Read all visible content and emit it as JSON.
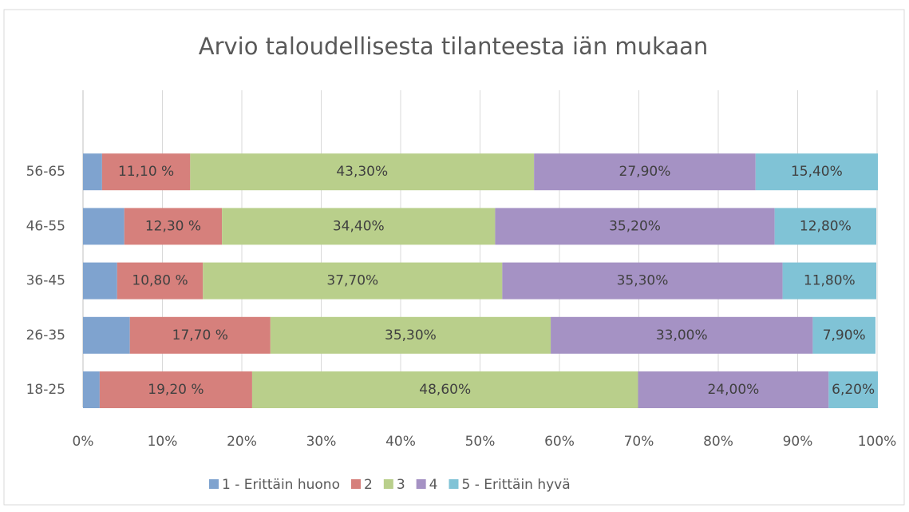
{
  "chart_data": {
    "type": "stacked-barh",
    "title": "Arvio taloudellisesta tilanteesta iän mukaan",
    "categories": [
      "18-25",
      "26-35",
      "36-45",
      "46-55",
      "56-65"
    ],
    "series": [
      {
        "name": "1 - Erittäin huono",
        "color": "#7fa3cf",
        "values": [
          2.1,
          5.9,
          4.3,
          5.2,
          2.4
        ]
      },
      {
        "name": "2",
        "color": "#d6807c",
        "values": [
          19.2,
          17.7,
          10.8,
          12.3,
          11.1
        ],
        "value_labels": [
          "19,20 %",
          "17,70 %",
          "10,80 %",
          "12,30 %",
          "11,10 %"
        ]
      },
      {
        "name": "3",
        "color": "#b9cf8b",
        "values": [
          48.6,
          35.3,
          37.7,
          34.4,
          43.3
        ],
        "value_labels": [
          "48,60%",
          "35,30%",
          "37,70%",
          "34,40%",
          "43,30%"
        ]
      },
      {
        "name": "4",
        "color": "#a592c4",
        "values": [
          24.0,
          33.0,
          35.3,
          35.2,
          27.9
        ],
        "value_labels": [
          "24,00%",
          "33,00%",
          "35,30%",
          "35,20%",
          "27,90%"
        ]
      },
      {
        "name": "5 - Erittäin hyvä",
        "color": "#80c3d6",
        "values": [
          6.2,
          7.9,
          11.8,
          12.8,
          15.4
        ],
        "value_labels": [
          "6,20%",
          "7,90%",
          "11,80%",
          "12,80%",
          "15,40%"
        ]
      }
    ],
    "xlim": [
      0,
      100
    ],
    "xticks": [
      {
        "value": 0,
        "label": "0%"
      },
      {
        "value": 10,
        "label": "10%"
      },
      {
        "value": 20,
        "label": "20%"
      },
      {
        "value": 30,
        "label": "30%"
      },
      {
        "value": 40,
        "label": "40%"
      },
      {
        "value": 50,
        "label": "50%"
      },
      {
        "value": 60,
        "label": "60%"
      },
      {
        "value": 70,
        "label": "70%"
      },
      {
        "value": 80,
        "label": "80%"
      },
      {
        "value": 90,
        "label": "90%"
      },
      {
        "value": 100,
        "label": "100%"
      }
    ],
    "grid": true,
    "legend": "bottom"
  }
}
